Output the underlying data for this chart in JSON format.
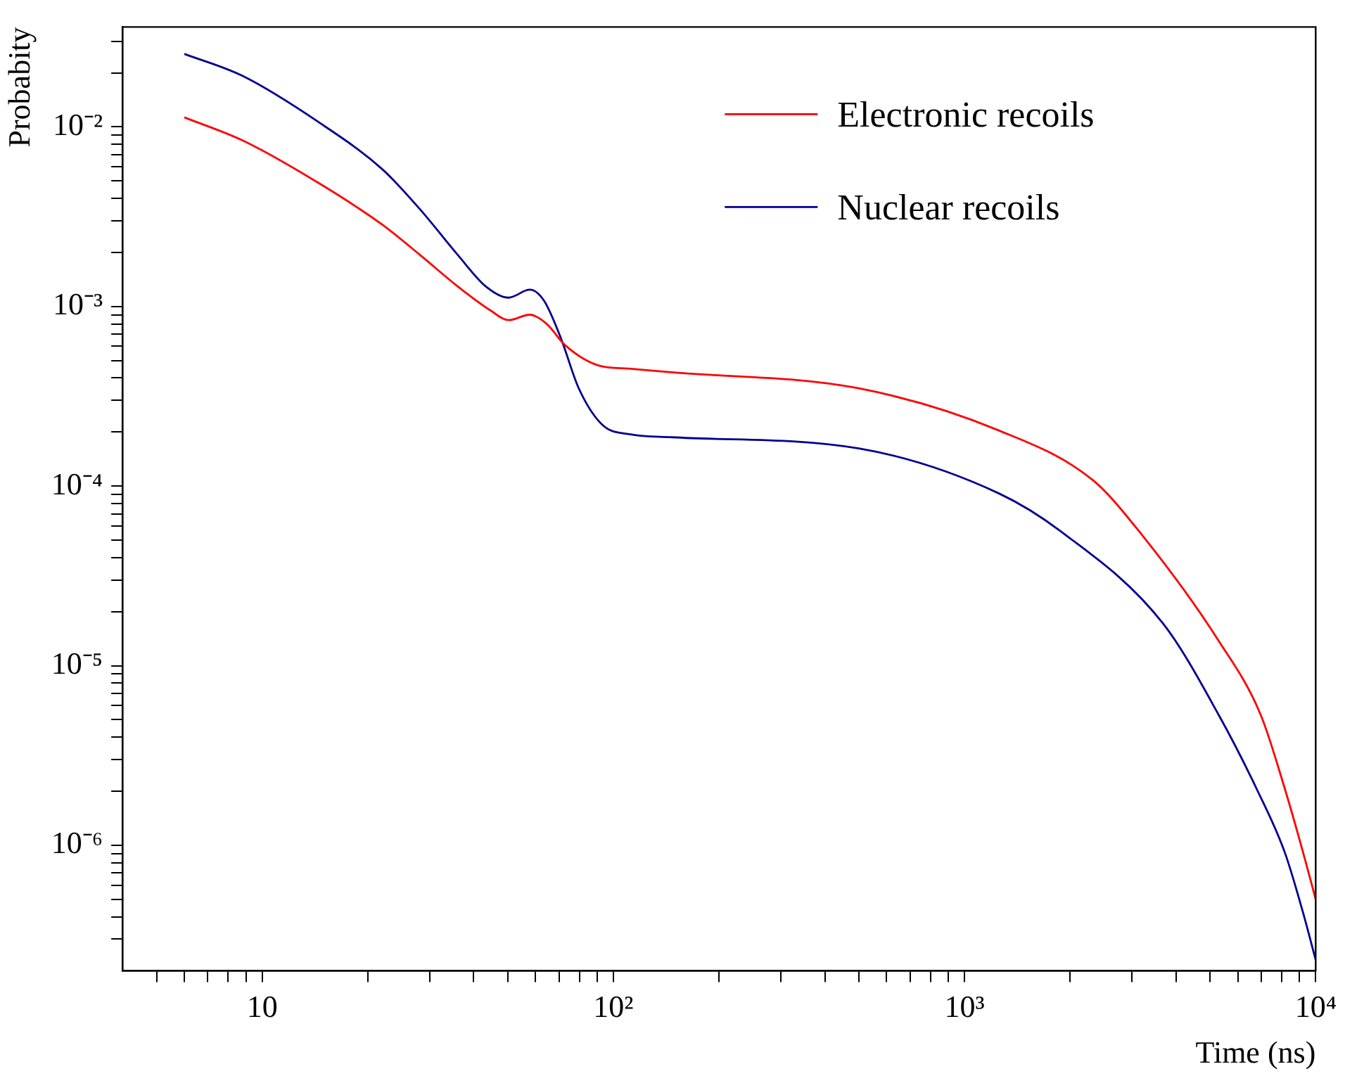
{
  "chart_data": {
    "type": "line",
    "xlabel": "Time (ns)",
    "ylabel": "Probabity",
    "log": "xy",
    "legend": "top right",
    "grid": false,
    "marker": "none",
    "line_style": "solid",
    "xlim": [
      4,
      10000
    ],
    "xticks": [
      {
        "value": 5,
        "label": null
      },
      {
        "value": 6,
        "label": null
      },
      {
        "value": 7,
        "label": null
      },
      {
        "value": 8,
        "label": null
      },
      {
        "value": 9,
        "label": null
      },
      10,
      {
        "value": 20,
        "label": null
      },
      {
        "value": 30,
        "label": null
      },
      {
        "value": 40,
        "label": null
      },
      {
        "value": 50,
        "label": null
      },
      {
        "value": 60,
        "label": null
      },
      {
        "value": 70,
        "label": null
      },
      {
        "value": 80,
        "label": null
      },
      {
        "value": 90,
        "label": null
      },
      {
        "value": 100,
        "label": "10²"
      },
      {
        "value": 200,
        "label": null
      },
      {
        "value": 300,
        "label": null
      },
      {
        "value": 400,
        "label": null
      },
      {
        "value": 500,
        "label": null
      },
      {
        "value": 600,
        "label": null
      },
      {
        "value": 700,
        "label": null
      },
      {
        "value": 800,
        "label": null
      },
      {
        "value": 900,
        "label": null
      },
      {
        "value": 1000,
        "label": "10³"
      },
      {
        "value": 2000,
        "label": null
      },
      {
        "value": 3000,
        "label": null
      },
      {
        "value": 4000,
        "label": null
      },
      {
        "value": 5000,
        "label": null
      },
      {
        "value": 6000,
        "label": null
      },
      {
        "value": 7000,
        "label": null
      },
      {
        "value": 8000,
        "label": null
      },
      {
        "value": 9000,
        "label": null
      },
      {
        "value": 10000,
        "label": "10⁴"
      }
    ],
    "ylim": [
      2e-07,
      0.036
    ],
    "yticks": [
      {
        "value": 3e-07,
        "label": null
      },
      {
        "value": 4e-07,
        "label": null
      },
      {
        "value": 5e-07,
        "label": null
      },
      {
        "value": 6e-07,
        "label": null
      },
      {
        "value": 7e-07,
        "label": null
      },
      {
        "value": 8e-07,
        "label": null
      },
      {
        "value": 9e-07,
        "label": null
      },
      {
        "value": 1e-06,
        "label": "10⁻⁶"
      },
      {
        "value": 2e-06,
        "label": null
      },
      {
        "value": 3e-06,
        "label": null
      },
      {
        "value": 4e-06,
        "label": null
      },
      {
        "value": 5e-06,
        "label": null
      },
      {
        "value": 6e-06,
        "label": null
      },
      {
        "value": 7e-06,
        "label": null
      },
      {
        "value": 8e-06,
        "label": null
      },
      {
        "value": 9e-06,
        "label": null
      },
      {
        "value": 1e-05,
        "label": "10⁻⁵"
      },
      {
        "value": 2e-05,
        "label": null
      },
      {
        "value": 3e-05,
        "label": null
      },
      {
        "value": 4e-05,
        "label": null
      },
      {
        "value": 5e-05,
        "label": null
      },
      {
        "value": 6e-05,
        "label": null
      },
      {
        "value": 7e-05,
        "label": null
      },
      {
        "value": 8e-05,
        "label": null
      },
      {
        "value": 9e-05,
        "label": null
      },
      {
        "value": 0.0001,
        "label": "10⁻⁴"
      },
      {
        "value": 0.0002,
        "label": null
      },
      {
        "value": 0.0003,
        "label": null
      },
      {
        "value": 0.0004,
        "label": null
      },
      {
        "value": 0.0005,
        "label": null
      },
      {
        "value": 0.0006,
        "label": null
      },
      {
        "value": 0.0007,
        "label": null
      },
      {
        "value": 0.0008,
        "label": null
      },
      {
        "value": 0.0009,
        "label": null
      },
      {
        "value": 0.001,
        "label": "10⁻³"
      },
      {
        "value": 0.002,
        "label": null
      },
      {
        "value": 0.003,
        "label": null
      },
      {
        "value": 0.004,
        "label": null
      },
      {
        "value": 0.005,
        "label": null
      },
      {
        "value": 0.006,
        "label": null
      },
      {
        "value": 0.007,
        "label": null
      },
      {
        "value": 0.008,
        "label": null
      },
      {
        "value": 0.009,
        "label": null
      },
      {
        "value": 0.01,
        "label": "10⁻²"
      },
      {
        "value": 0.02,
        "label": null
      },
      {
        "value": 0.03,
        "label": null
      }
    ],
    "series": [
      {
        "name": "Electronic recoils",
        "color": "#ff0000",
        "x": [
          6,
          8.8,
          14.4,
          22,
          28.2,
          36.1,
          44.7,
          50.3,
          57.8,
          64.6,
          72.8,
          90.6,
          112,
          147,
          500,
          1253,
          2319,
          3141,
          5300,
          6980,
          8170,
          9210,
          10000
        ],
        "values": [
          0.0113,
          0.0084,
          0.0049,
          0.00285,
          0.00193,
          0.00129,
          0.00095,
          0.00084,
          0.0009,
          0.0008,
          0.00061,
          0.00047,
          0.00045,
          0.00043,
          0.00035,
          0.000204,
          0.000108,
          5.6e-05,
          1.37e-05,
          5.3e-06,
          2.06e-06,
          9.1e-07,
          5e-07
        ]
      },
      {
        "name": "Nuclear recoils",
        "color": "#000090",
        "x": [
          6,
          8.8,
          14.4,
          22,
          28.2,
          36.1,
          43.4,
          50.3,
          57.8,
          63.4,
          70.8,
          79.7,
          93.1,
          112,
          147,
          500,
          1253,
          1878,
          3673,
          5300,
          6790,
          8170,
          9210,
          10000
        ],
        "values": [
          0.0255,
          0.0192,
          0.0107,
          0.0058,
          0.00346,
          0.00193,
          0.00129,
          0.00112,
          0.00124,
          0.00108,
          0.00067,
          0.00035,
          0.000219,
          0.000194,
          0.000187,
          0.000162,
          9.1e-05,
          5.6e-05,
          1.72e-05,
          5.3e-06,
          2.06e-06,
          9.1e-07,
          4.2e-07,
          2.3e-07
        ]
      }
    ]
  }
}
